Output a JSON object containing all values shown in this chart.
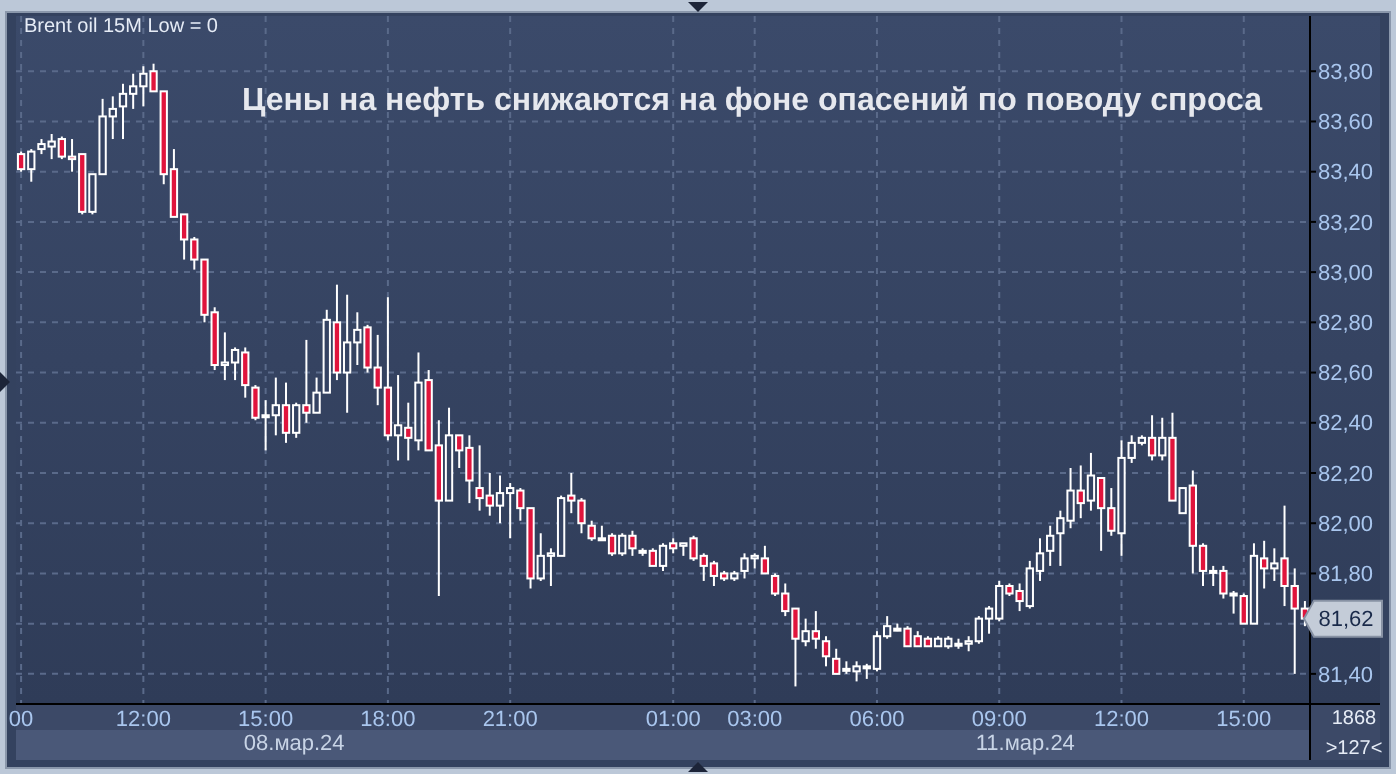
{
  "chart_data": {
    "type": "candlestick",
    "title": "Цены на нефть снижаются на фоне опасений по поводу спроса",
    "annotations": [
      "Brent oil 15M Low = 0",
      "08.мар.24",
      "11.мар.24",
      "1868",
      ">127<",
      {
        "text": "81,62",
        "y": 81.62
      }
    ],
    "categories": [
      "00",
      null,
      null,
      null,
      null,
      null,
      null,
      null,
      null,
      null,
      null,
      null,
      "12:00",
      null,
      null,
      null,
      null,
      null,
      null,
      null,
      null,
      null,
      null,
      null,
      "15:00",
      null,
      null,
      null,
      null,
      null,
      null,
      null,
      null,
      null,
      null,
      null,
      "18:00",
      null,
      null,
      null,
      null,
      null,
      null,
      null,
      null,
      null,
      null,
      null,
      "21:00",
      null,
      null,
      null,
      null,
      null,
      null,
      null,
      null,
      null,
      null,
      null,
      null,
      null,
      null,
      null,
      "01:00",
      null,
      null,
      null,
      null,
      null,
      null,
      null,
      "03:00",
      null,
      null,
      null,
      null,
      null,
      null,
      null,
      null,
      null,
      null,
      null,
      "06:00",
      null,
      null,
      null,
      null,
      null,
      null,
      null,
      null,
      null,
      null,
      null,
      "09:00",
      null,
      null,
      null,
      null,
      null,
      null,
      null,
      null,
      null,
      null,
      null,
      "12:00",
      null,
      null,
      null,
      null,
      null,
      null,
      null,
      null,
      null,
      null,
      null,
      "15:00",
      null,
      null,
      null,
      null,
      null,
      null
    ],
    "ylim": [
      81.28,
      84.02
    ],
    "yticks": [
      {
        "value": 81.4,
        "label": "81,40"
      },
      {
        "value": 81.6,
        "label": null
      },
      {
        "value": 81.8,
        "label": "81,80"
      },
      {
        "value": 82.0,
        "label": "82,00"
      },
      {
        "value": 82.2,
        "label": "82,20"
      },
      {
        "value": 82.4,
        "label": "82,40"
      },
      {
        "value": 82.6,
        "label": "82,60"
      },
      {
        "value": 82.8,
        "label": "82,80"
      },
      {
        "value": 83.0,
        "label": "83,00"
      },
      {
        "value": 83.2,
        "label": "83,20"
      },
      {
        "value": 83.4,
        "label": "83,40"
      },
      {
        "value": 83.6,
        "label": "83,60"
      },
      {
        "value": 83.8,
        "label": "83,80"
      }
    ],
    "grid": true,
    "ohlc": [
      [
        83.47,
        83.48,
        83.4,
        83.41
      ],
      [
        83.41,
        83.49,
        83.36,
        83.48
      ],
      [
        83.49,
        83.53,
        83.47,
        83.51
      ],
      [
        83.5,
        83.55,
        83.45,
        83.52
      ],
      [
        83.53,
        83.54,
        83.45,
        83.46
      ],
      [
        83.46,
        83.53,
        83.4,
        83.45
      ],
      [
        83.47,
        83.47,
        83.23,
        83.24
      ],
      [
        83.24,
        83.39,
        83.23,
        83.39
      ],
      [
        83.39,
        83.69,
        83.39,
        83.62
      ],
      [
        83.62,
        83.7,
        83.53,
        83.65
      ],
      [
        83.66,
        83.75,
        83.53,
        83.71
      ],
      [
        83.71,
        83.79,
        83.65,
        83.74
      ],
      [
        83.74,
        83.82,
        83.66,
        83.79
      ],
      [
        83.8,
        83.83,
        83.72,
        83.72
      ],
      [
        83.72,
        83.72,
        83.35,
        83.39
      ],
      [
        83.41,
        83.49,
        83.22,
        83.22
      ],
      [
        83.23,
        83.23,
        83.05,
        83.13
      ],
      [
        83.13,
        83.14,
        83.01,
        83.05
      ],
      [
        83.05,
        83.05,
        82.8,
        82.83
      ],
      [
        82.84,
        82.86,
        82.61,
        82.63
      ],
      [
        82.63,
        82.76,
        82.57,
        82.64
      ],
      [
        82.64,
        82.7,
        82.57,
        82.69
      ],
      [
        82.68,
        82.7,
        82.5,
        82.55
      ],
      [
        82.54,
        82.55,
        82.41,
        82.42
      ],
      [
        82.43,
        82.49,
        82.29,
        82.43
      ],
      [
        82.43,
        82.58,
        82.35,
        82.47
      ],
      [
        82.47,
        82.56,
        82.32,
        82.36
      ],
      [
        82.36,
        82.48,
        82.34,
        82.47
      ],
      [
        82.47,
        82.73,
        82.4,
        82.44
      ],
      [
        82.44,
        82.58,
        82.44,
        82.52
      ],
      [
        82.52,
        82.85,
        82.52,
        82.81
      ],
      [
        82.8,
        82.95,
        82.57,
        82.6
      ],
      [
        82.6,
        82.91,
        82.44,
        82.72
      ],
      [
        82.72,
        82.84,
        82.63,
        82.77
      ],
      [
        82.78,
        82.79,
        82.6,
        82.62
      ],
      [
        82.62,
        82.75,
        82.47,
        82.54
      ],
      [
        82.54,
        82.9,
        82.33,
        82.35
      ],
      [
        82.35,
        82.59,
        82.25,
        82.39
      ],
      [
        82.38,
        82.48,
        82.25,
        82.34
      ],
      [
        82.33,
        82.68,
        82.29,
        82.56
      ],
      [
        82.57,
        82.61,
        82.29,
        82.29
      ],
      [
        82.31,
        82.41,
        81.71,
        82.09
      ],
      [
        82.09,
        82.46,
        82.09,
        82.35
      ],
      [
        82.35,
        82.35,
        82.22,
        82.29
      ],
      [
        82.3,
        82.35,
        82.08,
        82.17
      ],
      [
        82.14,
        82.31,
        82.05,
        82.1
      ],
      [
        82.11,
        82.2,
        82.03,
        82.07
      ],
      [
        82.07,
        82.19,
        82.0,
        82.12
      ],
      [
        82.12,
        82.16,
        81.94,
        82.14
      ],
      [
        82.13,
        82.14,
        82.01,
        82.06
      ],
      [
        82.06,
        82.06,
        81.74,
        81.78
      ],
      [
        81.78,
        81.96,
        81.77,
        81.87
      ],
      [
        81.87,
        81.9,
        81.75,
        81.88
      ],
      [
        81.87,
        82.11,
        81.87,
        82.1
      ],
      [
        82.11,
        82.2,
        82.04,
        82.09
      ],
      [
        82.09,
        82.1,
        81.96,
        82.0
      ],
      [
        81.99,
        82.01,
        81.93,
        81.94
      ],
      [
        81.94,
        81.99,
        81.93,
        81.94
      ],
      [
        81.95,
        81.96,
        81.87,
        81.88
      ],
      [
        81.88,
        81.96,
        81.87,
        81.95
      ],
      [
        81.95,
        81.97,
        81.87,
        81.9
      ],
      [
        81.89,
        81.9,
        81.87,
        81.89
      ],
      [
        81.89,
        81.9,
        81.83,
        81.83
      ],
      [
        81.83,
        81.92,
        81.81,
        81.91
      ],
      [
        81.92,
        81.94,
        81.88,
        81.9
      ],
      [
        81.91,
        81.92,
        81.87,
        81.92
      ],
      [
        81.94,
        81.95,
        81.85,
        81.86
      ],
      [
        81.87,
        81.88,
        81.77,
        81.83
      ],
      [
        81.84,
        81.85,
        81.75,
        81.79
      ],
      [
        81.8,
        81.81,
        81.77,
        81.78
      ],
      [
        81.78,
        81.81,
        81.77,
        81.8
      ],
      [
        81.81,
        81.88,
        81.78,
        81.86
      ],
      [
        81.86,
        81.88,
        81.82,
        81.87
      ],
      [
        81.86,
        81.91,
        81.8,
        81.8
      ],
      [
        81.79,
        81.8,
        81.71,
        81.72
      ],
      [
        81.72,
        81.76,
        81.63,
        81.65
      ],
      [
        81.66,
        81.66,
        81.35,
        81.54
      ],
      [
        81.53,
        81.62,
        81.51,
        81.57
      ],
      [
        81.57,
        81.65,
        81.5,
        81.54
      ],
      [
        81.53,
        81.55,
        81.43,
        81.47
      ],
      [
        81.46,
        81.5,
        81.4,
        81.4
      ],
      [
        81.42,
        81.45,
        81.4,
        81.42
      ],
      [
        81.41,
        81.45,
        81.37,
        81.43
      ],
      [
        81.43,
        81.44,
        81.38,
        81.43
      ],
      [
        81.42,
        81.57,
        81.41,
        81.55
      ],
      [
        81.55,
        81.63,
        81.54,
        81.59
      ],
      [
        81.58,
        81.6,
        81.57,
        81.58
      ],
      [
        81.58,
        81.59,
        81.51,
        81.51
      ],
      [
        81.55,
        81.57,
        81.51,
        81.51
      ],
      [
        81.54,
        81.55,
        81.51,
        81.51
      ],
      [
        81.51,
        81.55,
        81.51,
        81.54
      ],
      [
        81.51,
        81.55,
        81.5,
        81.54
      ],
      [
        81.52,
        81.54,
        81.5,
        81.52
      ],
      [
        81.52,
        81.55,
        81.49,
        81.53
      ],
      [
        81.53,
        81.63,
        81.52,
        81.62
      ],
      [
        81.62,
        81.67,
        81.56,
        81.66
      ],
      [
        81.62,
        81.77,
        81.61,
        81.75
      ],
      [
        81.75,
        81.76,
        81.71,
        81.72
      ],
      [
        81.73,
        81.76,
        81.65,
        81.69
      ],
      [
        81.67,
        81.85,
        81.66,
        81.82
      ],
      [
        81.81,
        81.94,
        81.77,
        81.88
      ],
      [
        81.89,
        81.99,
        81.83,
        81.95
      ],
      [
        81.96,
        82.05,
        81.83,
        82.02
      ],
      [
        82.01,
        82.22,
        81.98,
        82.13
      ],
      [
        82.13,
        82.23,
        82.02,
        82.08
      ],
      [
        82.09,
        82.28,
        82.05,
        82.19
      ],
      [
        82.18,
        82.18,
        81.89,
        82.06
      ],
      [
        82.06,
        82.14,
        81.95,
        81.97
      ],
      [
        81.96,
        82.33,
        81.87,
        82.26
      ],
      [
        82.26,
        82.35,
        82.24,
        82.32
      ],
      [
        82.32,
        82.35,
        82.31,
        82.34
      ],
      [
        82.34,
        82.43,
        82.25,
        82.27
      ],
      [
        82.27,
        82.42,
        82.25,
        82.34
      ],
      [
        82.34,
        82.44,
        82.09,
        82.09
      ],
      [
        82.04,
        82.14,
        82.04,
        82.14
      ],
      [
        82.15,
        82.21,
        81.8,
        81.91
      ],
      [
        81.91,
        81.92,
        81.75,
        81.81
      ],
      [
        81.81,
        81.83,
        81.75,
        81.81
      ],
      [
        81.81,
        81.83,
        81.7,
        81.72
      ],
      [
        81.72,
        81.73,
        81.64,
        81.72
      ],
      [
        81.71,
        81.72,
        81.6,
        81.6
      ],
      [
        81.6,
        81.92,
        81.6,
        81.87
      ],
      [
        81.86,
        81.93,
        81.74,
        81.82
      ],
      [
        81.82,
        81.9,
        81.77,
        81.84
      ],
      [
        81.86,
        82.07,
        81.67,
        81.75
      ],
      [
        81.75,
        81.82,
        81.4,
        81.66
      ],
      [
        81.66,
        81.69,
        81.59,
        81.62
      ]
    ]
  }
}
